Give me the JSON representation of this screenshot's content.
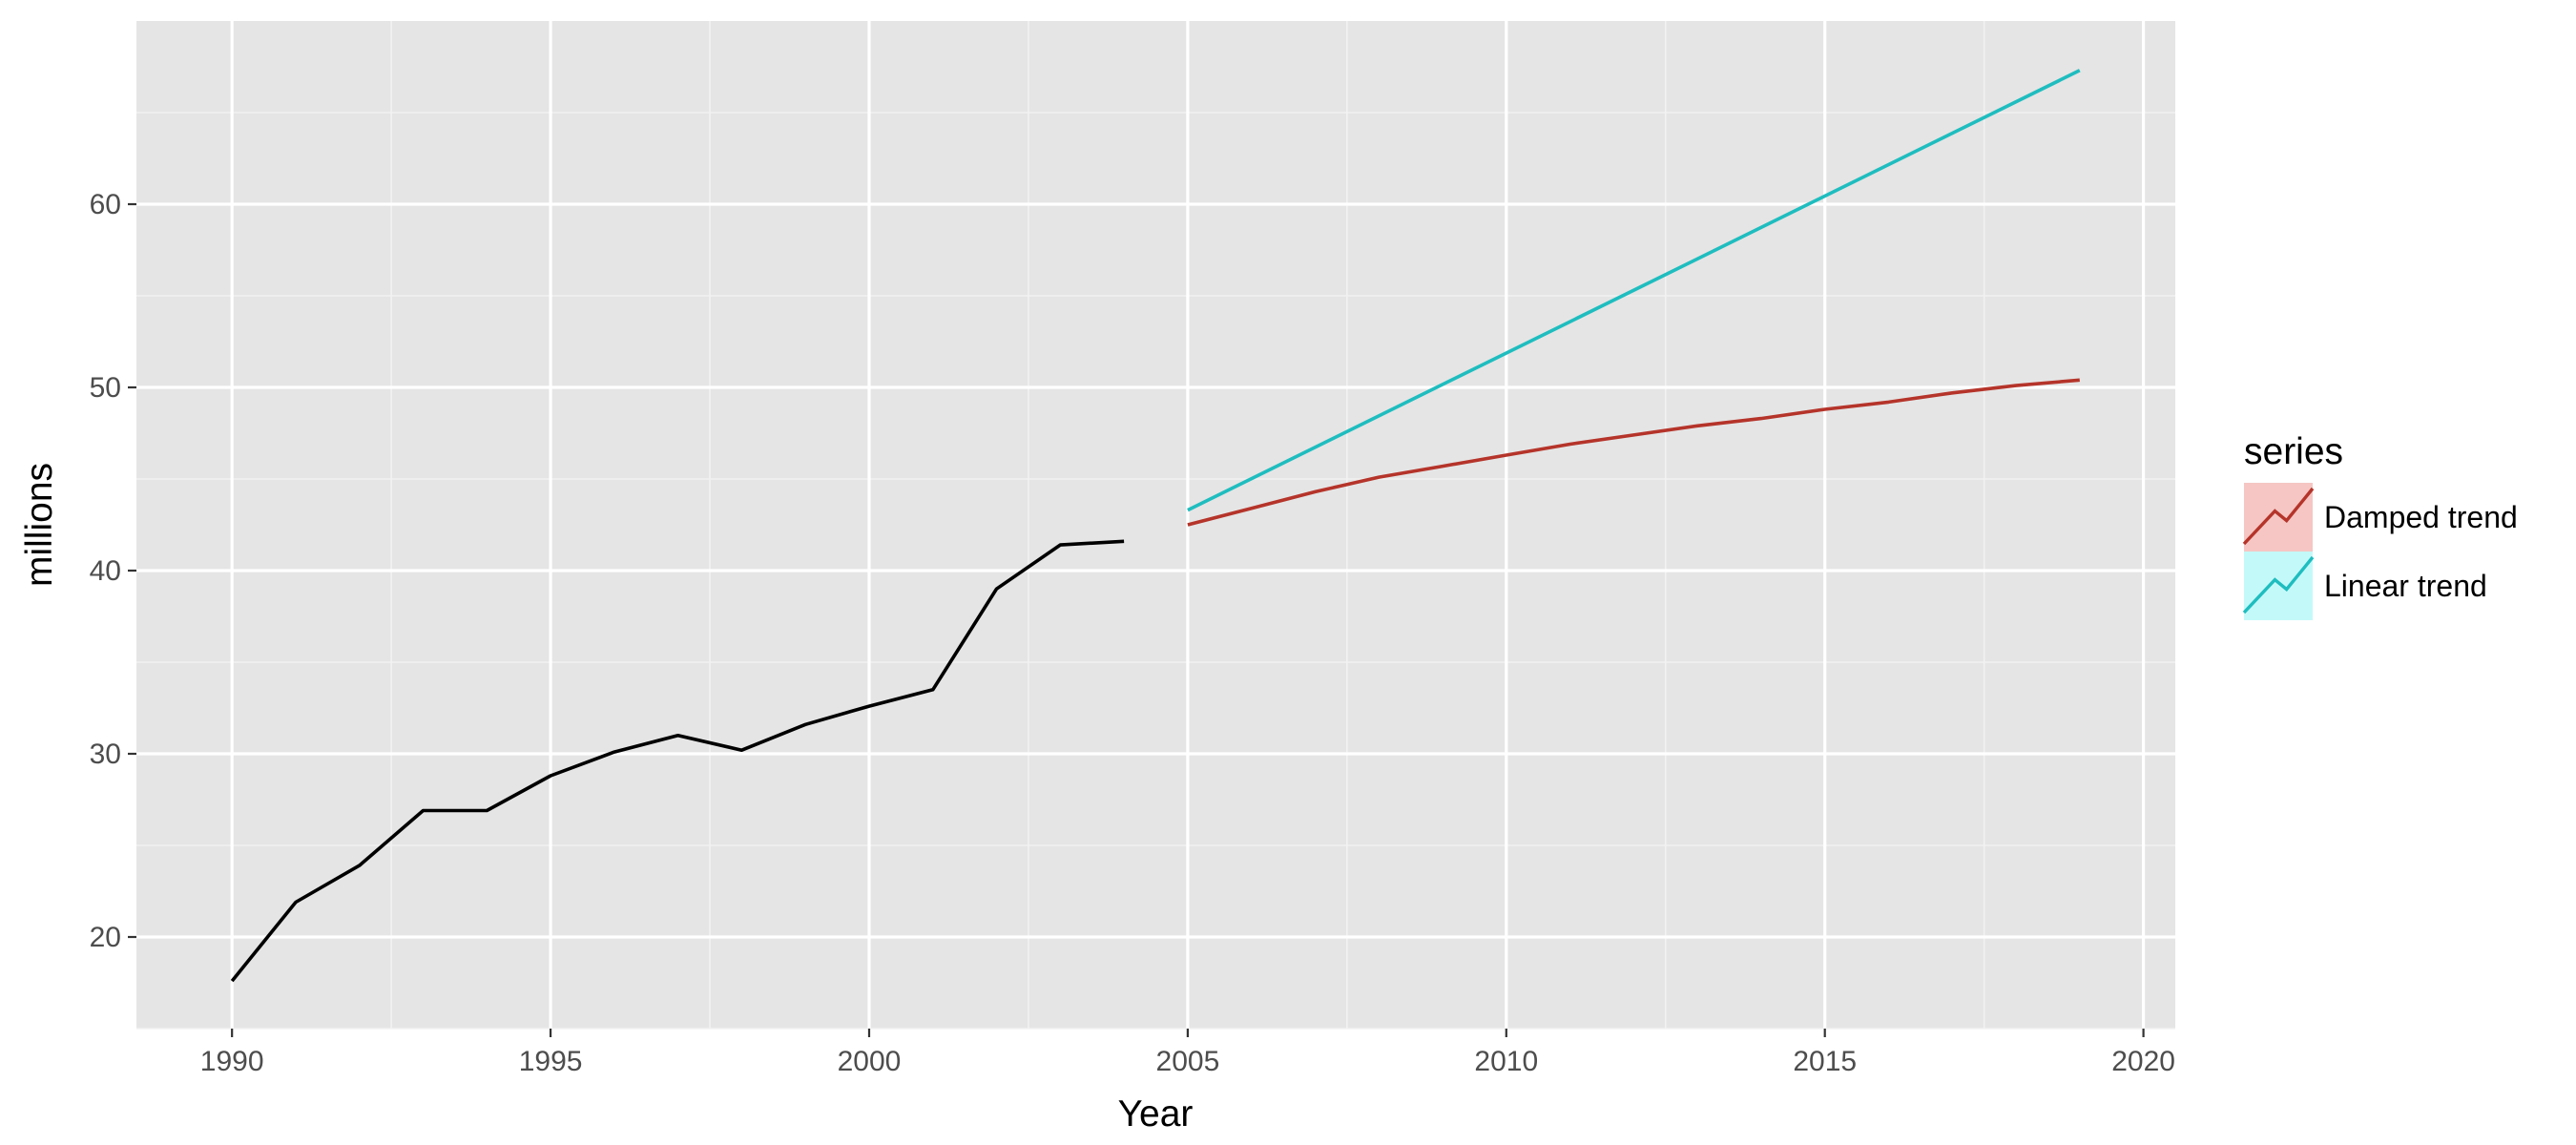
{
  "chart_data": {
    "type": "line",
    "xlabel": "Year",
    "ylabel": "millions",
    "xlim": [
      1988.5,
      2020.5
    ],
    "ylim": [
      15,
      70
    ],
    "x_ticks": [
      1990,
      1995,
      2000,
      2005,
      2010,
      2015,
      2020
    ],
    "y_ticks": [
      20,
      30,
      40,
      50,
      60
    ],
    "grid": true,
    "legend": {
      "title": "series",
      "position": "right"
    },
    "history": {
      "color": "#000000",
      "x": [
        1990,
        1991,
        1992,
        1993,
        1994,
        1995,
        1996,
        1997,
        1998,
        1999,
        2000,
        2001,
        2002,
        2003,
        2004
      ],
      "values": [
        17.6,
        21.9,
        23.9,
        26.9,
        26.9,
        28.8,
        30.1,
        31.0,
        30.2,
        31.6,
        32.6,
        33.5,
        39.0,
        41.4,
        41.6
      ]
    },
    "series": [
      {
        "name": "Damped trend",
        "color": "#b5342a",
        "fill": "#f5c6c3",
        "x": [
          2005,
          2006,
          2007,
          2008,
          2009,
          2010,
          2011,
          2012,
          2013,
          2014,
          2015,
          2016,
          2017,
          2018,
          2019
        ],
        "values": [
          42.5,
          43.4,
          44.3,
          45.1,
          45.7,
          46.3,
          46.9,
          47.4,
          47.9,
          48.3,
          48.8,
          49.2,
          49.7,
          50.1,
          50.4
        ]
      },
      {
        "name": "Linear trend",
        "color": "#1fbdbf",
        "fill": "#c4f9f9",
        "x": [
          2005,
          2019
        ],
        "values": [
          43.3,
          67.3
        ]
      }
    ]
  }
}
